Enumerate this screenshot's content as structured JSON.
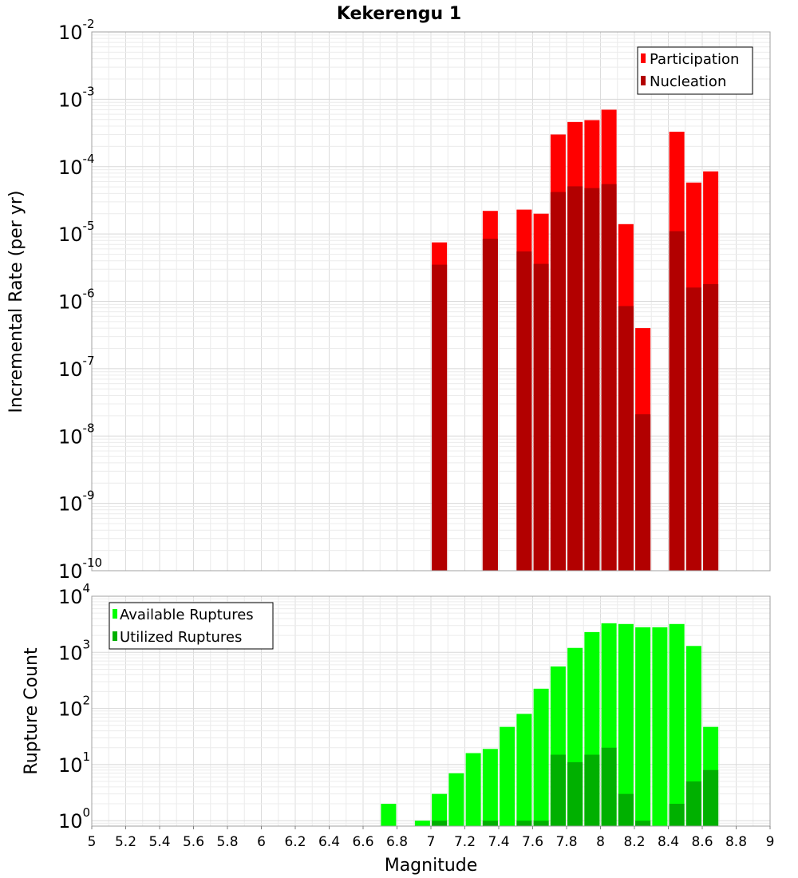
{
  "chart_data": [
    {
      "type": "bar",
      "title": "Kekerengu 1",
      "xlabel": "",
      "ylabel": "Incremental Rate (per yr)",
      "yscale": "log",
      "xlim": [
        5,
        9
      ],
      "ylim": [
        1e-10,
        0.01
      ],
      "grid": true,
      "legend_position": "top-right",
      "yticks": [
        {
          "base": "10",
          "exp": "-2"
        },
        {
          "base": "10",
          "exp": "-3"
        },
        {
          "base": "10",
          "exp": "-4"
        },
        {
          "base": "10",
          "exp": "-5"
        },
        {
          "base": "10",
          "exp": "-6"
        },
        {
          "base": "10",
          "exp": "-7"
        },
        {
          "base": "10",
          "exp": "-8"
        },
        {
          "base": "10",
          "exp": "-9"
        },
        {
          "base": "10",
          "exp": "-10"
        }
      ],
      "x": [
        7.05,
        7.35,
        7.55,
        7.65,
        7.75,
        7.85,
        7.95,
        8.05,
        8.15,
        8.25,
        8.45,
        8.55,
        8.65
      ],
      "series": [
        {
          "name": "Participation",
          "color": "#ff0000",
          "values": [
            7.5e-06,
            2.2e-05,
            2.3e-05,
            2e-05,
            0.0003,
            0.00046,
            0.00049,
            0.0007,
            1.4e-05,
            4e-07,
            0.00033,
            5.8e-05,
            8.5e-05
          ]
        },
        {
          "name": "Nucleation",
          "color": "#b20000",
          "values": [
            3.5e-06,
            8.5e-06,
            5.5e-06,
            3.6e-06,
            4.2e-05,
            5.1e-05,
            4.8e-05,
            5.5e-05,
            8.5e-07,
            2.1e-08,
            1.1e-05,
            1.6e-06,
            1.8e-06
          ]
        }
      ]
    },
    {
      "type": "bar",
      "title": "",
      "xlabel": "Magnitude",
      "ylabel": "Rupture Count",
      "yscale": "log",
      "xlim": [
        5,
        9
      ],
      "ylim": [
        0.8,
        10000
      ],
      "grid": true,
      "legend_position": "top-left",
      "xticks": [
        "5",
        "5.2",
        "5.4",
        "5.6",
        "5.8",
        "6",
        "6.2",
        "6.4",
        "6.6",
        "6.8",
        "7",
        "7.2",
        "7.4",
        "7.6",
        "7.8",
        "8",
        "8.2",
        "8.4",
        "8.6",
        "8.8",
        "9"
      ],
      "yticks": [
        {
          "base": "10",
          "exp": "4"
        },
        {
          "base": "10",
          "exp": "3"
        },
        {
          "base": "10",
          "exp": "2"
        },
        {
          "base": "10",
          "exp": "1"
        },
        {
          "base": "10",
          "exp": "0"
        }
      ],
      "x": [
        6.75,
        6.95,
        7.05,
        7.15,
        7.25,
        7.35,
        7.45,
        7.55,
        7.65,
        7.75,
        7.85,
        7.95,
        8.05,
        8.15,
        8.25,
        8.35,
        8.45,
        8.55,
        8.65
      ],
      "series": [
        {
          "name": "Available Ruptures",
          "color": "#00ff00",
          "values": [
            2,
            1,
            3,
            7,
            16,
            19,
            47,
            80,
            225,
            560,
            1200,
            2300,
            3300,
            3200,
            2800,
            2800,
            3200,
            1300,
            47
          ]
        },
        {
          "name": "Utilized Ruptures",
          "color": "#00b000",
          "values": [
            null,
            null,
            1,
            null,
            null,
            1,
            null,
            1,
            1,
            15,
            11,
            15,
            20,
            3,
            1,
            null,
            2,
            5,
            8
          ]
        }
      ]
    }
  ]
}
